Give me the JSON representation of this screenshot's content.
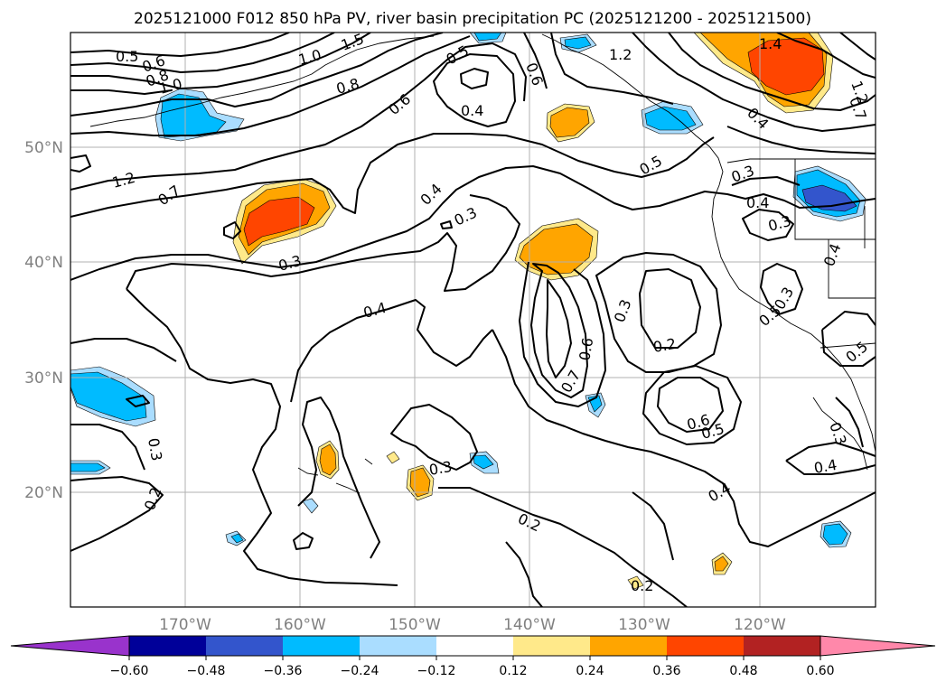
{
  "title": "2025121000 F012 850 hPa PV, river basin precipitation PC (2025121200 - 2025121500)",
  "lon_ticks": [
    "170°W",
    "160°W",
    "150°W",
    "140°W",
    "130°W",
    "120°W"
  ],
  "lat_ticks": [
    "50°N",
    "40°N",
    "30°N",
    "20°N"
  ],
  "colorbar": {
    "ticks": [
      "−0.60",
      "−0.48",
      "−0.36",
      "−0.24",
      "−0.12",
      "0.12",
      "0.24",
      "0.36",
      "0.48",
      "0.60"
    ],
    "colors": [
      "#9933cc",
      "#000099",
      "#3355cc",
      "#00bbff",
      "#aaddff",
      "#ffffff",
      "#ffe98a",
      "#ffa500",
      "#ff4500",
      "#b22222",
      "#ff88aa"
    ]
  },
  "contour_labels": [
    "0.5",
    "0.6",
    "0.8",
    "1.0",
    "1.2",
    "0.7",
    "1.5",
    "1.0",
    "0.8",
    "0.6",
    "0.5",
    "0.4",
    "0.6",
    "1.2",
    "1.4",
    "1.2",
    "0.4",
    "0.5",
    "0.3",
    "0.3",
    "0.4",
    "0.4",
    "0.3",
    "0.3",
    "0.4",
    "0.3",
    "0.6",
    "0.7",
    "0.3",
    "0.2",
    "0.5",
    "0.4",
    "0.5",
    "0.6",
    "0.5",
    "0.3",
    "0.4",
    "0.4",
    "0.3",
    "0.2",
    "0.3",
    "0.2",
    "0.2",
    "0.7"
  ]
}
